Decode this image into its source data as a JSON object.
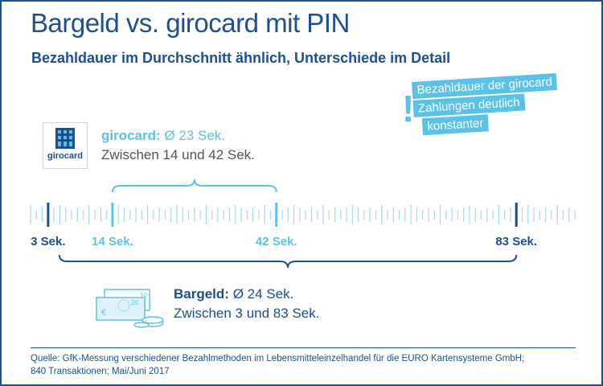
{
  "chart_data": {
    "type": "range",
    "title": "Bargeld vs. girocard mit PIN",
    "subtitle": "Bezahldauer im Durchschnitt ähnlich, Unterschiede im Detail",
    "annotation": [
      "Bezahldauer der girocard",
      "Zahlungen deutlich",
      "konstanter"
    ],
    "unit": "Sek.",
    "xlim": [
      0,
      93
    ],
    "series": [
      {
        "name": "girocard:",
        "average_text": " Ø 23 Sek.",
        "range_text": "Zwischen 14 und 42 Sek.",
        "average": 23,
        "min": 14,
        "max": 42,
        "color": "#5bc2e7"
      },
      {
        "name": "Bargeld:",
        "average_text": " Ø 24 Sek.",
        "range_text": "Zwischen 3 und 83 Sek.",
        "average": 24,
        "min": 3,
        "max": 83,
        "color": "#1d4f91"
      }
    ],
    "marked_ticks": [
      {
        "value": 3,
        "label": "3 Sek.",
        "color": "#1d4f91"
      },
      {
        "value": 14,
        "label": "14 Sek.",
        "color": "#5bc2e7"
      },
      {
        "value": 42,
        "label": "42 Sek.",
        "color": "#5bc2e7"
      },
      {
        "value": 83,
        "label": "83 Sek.",
        "color": "#1d4f91"
      }
    ]
  },
  "logo": {
    "text": "girocard"
  },
  "source": [
    "Quelle: GfK-Messung verschiedener Bezahlmethoden im Lebensmitteleinzelhandel für die EURO Kartensysteme GmbH;",
    "840 Transaktionen; Mai/Juni 2017"
  ]
}
